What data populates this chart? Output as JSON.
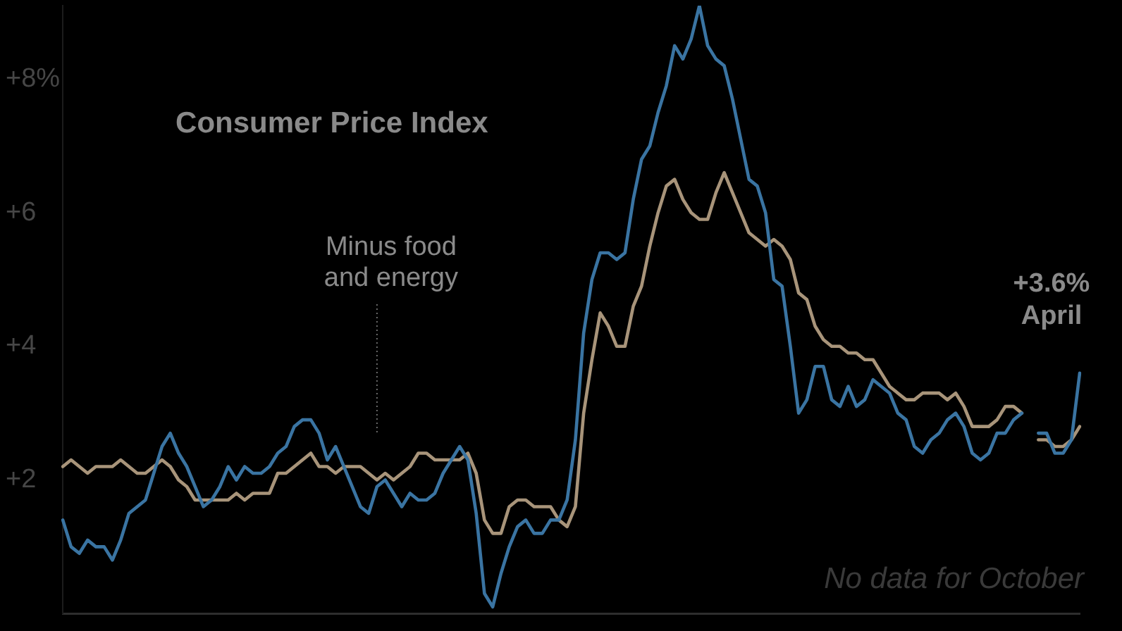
{
  "chart_data": {
    "type": "line",
    "title": "Consumer Price Index",
    "categories": [
      null,
      null,
      null,
      null,
      null,
      null,
      null,
      null,
      null,
      null,
      null,
      null,
      null,
      null,
      null,
      null,
      null,
      null,
      null,
      null,
      null,
      null,
      null,
      null,
      null,
      null,
      null,
      null,
      null,
      null,
      null,
      null,
      null,
      null,
      null,
      null,
      null,
      null,
      null,
      null,
      null,
      null,
      null,
      null,
      null,
      null,
      null,
      null,
      null,
      null,
      null,
      null,
      null,
      null,
      null,
      null,
      null,
      null,
      null,
      null,
      null,
      null,
      null,
      null,
      null,
      null,
      null,
      null,
      null,
      null,
      null,
      null,
      null,
      null,
      null,
      null,
      null,
      null,
      null,
      null,
      null,
      null,
      null,
      null,
      null,
      null,
      null,
      null,
      null,
      null,
      null,
      null,
      null,
      null,
      null,
      null,
      null,
      null,
      null,
      null,
      null,
      null,
      null,
      null,
      null,
      null,
      null,
      null,
      null,
      null,
      null,
      null,
      null,
      null,
      null,
      null,
      null,
      null,
      null,
      null,
      null,
      null,
      null,
      null
    ],
    "series": [
      {
        "color": "#3a74a2",
        "values": [
          1.4,
          1.0,
          0.9,
          1.1,
          1.0,
          1.0,
          0.8,
          1.1,
          1.5,
          1.6,
          1.7,
          2.1,
          2.5,
          2.7,
          2.4,
          2.2,
          1.9,
          1.6,
          1.7,
          1.9,
          2.2,
          2.0,
          2.2,
          2.1,
          2.1,
          2.2,
          2.4,
          2.5,
          2.8,
          2.9,
          2.9,
          2.7,
          2.3,
          2.5,
          2.2,
          1.9,
          1.6,
          1.5,
          1.9,
          2.0,
          1.8,
          1.6,
          1.8,
          1.7,
          1.7,
          1.8,
          2.1,
          2.3,
          2.5,
          2.3,
          1.5,
          0.3,
          0.1,
          0.6,
          1.0,
          1.3,
          1.4,
          1.2,
          1.2,
          1.4,
          1.4,
          1.7,
          2.6,
          4.2,
          5.0,
          5.4,
          5.4,
          5.3,
          5.4,
          6.2,
          6.8,
          7.0,
          7.5,
          7.9,
          8.5,
          8.3,
          8.6,
          9.1,
          8.5,
          8.3,
          8.2,
          7.7,
          7.1,
          6.5,
          6.4,
          6.0,
          5.0,
          4.9,
          4.0,
          3.0,
          3.2,
          3.7,
          3.7,
          3.2,
          3.1,
          3.4,
          3.1,
          3.2,
          3.5,
          3.4,
          3.3,
          3.0,
          2.9,
          2.5,
          2.4,
          2.6,
          2.7,
          2.9,
          3.0,
          2.8,
          2.4,
          2.3,
          2.4,
          2.7,
          2.7,
          2.9,
          3.0,
          null,
          null,
          null,
          null,
          null,
          null,
          null
        ]
      },
      {
        "color": "#3a74a2",
        "values": [
          null,
          null,
          null,
          null,
          null,
          null,
          null,
          null,
          null,
          null,
          null,
          null,
          null,
          null,
          null,
          null,
          null,
          null,
          null,
          null,
          null,
          null,
          null,
          null,
          null,
          null,
          null,
          null,
          null,
          null,
          null,
          null,
          null,
          null,
          null,
          null,
          null,
          null,
          null,
          null,
          null,
          null,
          null,
          null,
          null,
          null,
          null,
          null,
          null,
          null,
          null,
          null,
          null,
          null,
          null,
          null,
          null,
          null,
          null,
          null,
          null,
          null,
          null,
          null,
          null,
          null,
          null,
          null,
          null,
          null,
          null,
          null,
          null,
          null,
          null,
          null,
          null,
          null,
          null,
          null,
          null,
          null,
          null,
          null,
          null,
          null,
          null,
          null,
          null,
          null,
          null,
          null,
          null,
          null,
          null,
          null,
          null,
          null,
          null,
          null,
          null,
          null,
          null,
          null,
          null,
          null,
          null,
          null,
          null,
          null,
          null,
          null,
          null,
          null,
          null,
          null,
          null,
          null,
          2.7,
          2.7,
          2.4,
          2.4,
          2.6,
          3.6
        ]
      },
      {
        "name": "Minus food and energy",
        "color": "#a8947a",
        "values": [
          2.2,
          2.3,
          2.2,
          2.1,
          2.2,
          2.2,
          2.2,
          2.3,
          2.2,
          2.1,
          2.1,
          2.2,
          2.3,
          2.2,
          2.0,
          1.9,
          1.7,
          1.7,
          1.7,
          1.7,
          1.7,
          1.8,
          1.7,
          1.8,
          1.8,
          1.8,
          2.1,
          2.1,
          2.2,
          2.3,
          2.4,
          2.2,
          2.2,
          2.1,
          2.2,
          2.2,
          2.2,
          2.1,
          2.0,
          2.1,
          2.0,
          2.1,
          2.2,
          2.4,
          2.4,
          2.3,
          2.3,
          2.3,
          2.3,
          2.4,
          2.1,
          1.4,
          1.2,
          1.2,
          1.6,
          1.7,
          1.7,
          1.6,
          1.6,
          1.6,
          1.4,
          1.3,
          1.6,
          3.0,
          3.8,
          4.5,
          4.3,
          4.0,
          4.0,
          4.6,
          4.9,
          5.5,
          6.0,
          6.4,
          6.5,
          6.2,
          6.0,
          5.9,
          5.9,
          6.3,
          6.6,
          6.3,
          6.0,
          5.7,
          5.6,
          5.5,
          5.6,
          5.5,
          5.3,
          4.8,
          4.7,
          4.3,
          4.1,
          4.0,
          4.0,
          3.9,
          3.9,
          3.8,
          3.8,
          3.6,
          3.4,
          3.3,
          3.2,
          3.2,
          3.3,
          3.3,
          3.3,
          3.2,
          3.3,
          3.1,
          2.8,
          2.8,
          2.8,
          2.9,
          3.1,
          3.1,
          3.0,
          null,
          null,
          null,
          null,
          null,
          null,
          null
        ]
      },
      {
        "color": "#a8947a",
        "values": [
          null,
          null,
          null,
          null,
          null,
          null,
          null,
          null,
          null,
          null,
          null,
          null,
          null,
          null,
          null,
          null,
          null,
          null,
          null,
          null,
          null,
          null,
          null,
          null,
          null,
          null,
          null,
          null,
          null,
          null,
          null,
          null,
          null,
          null,
          null,
          null,
          null,
          null,
          null,
          null,
          null,
          null,
          null,
          null,
          null,
          null,
          null,
          null,
          null,
          null,
          null,
          null,
          null,
          null,
          null,
          null,
          null,
          null,
          null,
          null,
          null,
          null,
          null,
          null,
          null,
          null,
          null,
          null,
          null,
          null,
          null,
          null,
          null,
          null,
          null,
          null,
          null,
          null,
          null,
          null,
          null,
          null,
          null,
          null,
          null,
          null,
          null,
          null,
          null,
          null,
          null,
          null,
          null,
          null,
          null,
          null,
          null,
          null,
          null,
          null,
          null,
          null,
          null,
          null,
          null,
          null,
          null,
          null,
          null,
          null,
          null,
          null,
          null,
          null,
          null,
          null,
          null,
          null,
          2.6,
          2.6,
          2.5,
          2.5,
          2.6,
          2.8
        ]
      }
    ],
    "ylim": [
      0,
      9.1
    ],
    "yticks": [
      {
        "value": 2,
        "label": "+2"
      },
      {
        "value": 4,
        "label": "+4"
      },
      {
        "value": 6,
        "label": "+6"
      },
      {
        "value": 8,
        "label": "+8%"
      }
    ],
    "annotations": [
      "+3.6%\nApril",
      "No data for October"
    ],
    "grid": false,
    "legend": false,
    "tick_labels": "y",
    "marker": "none",
    "line_style": "solid"
  }
}
